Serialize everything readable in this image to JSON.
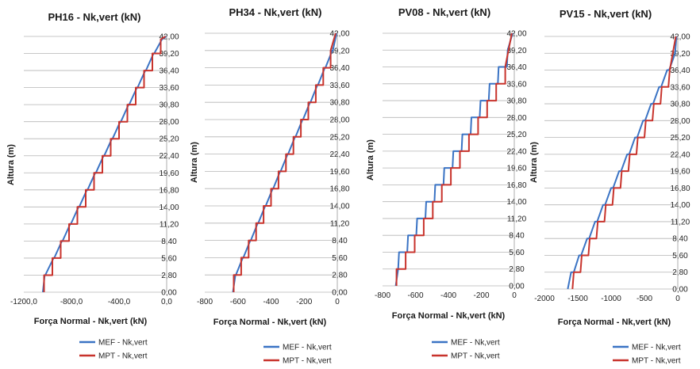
{
  "series_colors": {
    "MEF": "#3a73c4",
    "MPT": "#c8332c"
  },
  "chart_data": [
    {
      "type": "line",
      "title": "PH16 - Nk,vert (kN)",
      "xlabel": "Força Normal - Nk,vert (kN)",
      "ylabel": "Altura (m)",
      "xlim": [
        -1200,
        0
      ],
      "ylim": [
        0,
        42
      ],
      "xticks": [
        "-1200,0",
        "-800,0",
        "-400,0",
        "0,0"
      ],
      "yticks": [
        "0,00",
        "2,80",
        "5,60",
        "8,40",
        "11,20",
        "14,00",
        "16,80",
        "19,60",
        "22,40",
        "25,20",
        "28,00",
        "30,80",
        "33,60",
        "36,40",
        "39,20",
        "42,00"
      ],
      "legend": "bottom",
      "series": [
        {
          "name": "MEF - Nk,vert",
          "x": [
            -1040,
            -1025,
            -1020,
            -950,
            -945,
            -880,
            -875,
            -810,
            -805,
            -740,
            -735,
            -670,
            -665,
            -600,
            -595,
            -530,
            -525,
            -460,
            -455,
            -390,
            -385,
            -320,
            -315,
            -250,
            -245,
            -180,
            -175,
            -110,
            -105,
            -40,
            -5
          ],
          "y": [
            0,
            2.8,
            2.8,
            5.6,
            5.6,
            8.4,
            8.4,
            11.2,
            11.2,
            14,
            14,
            16.8,
            16.8,
            19.6,
            19.6,
            22.4,
            22.4,
            25.2,
            25.2,
            28,
            28,
            30.8,
            30.8,
            33.6,
            33.6,
            36.4,
            36.4,
            39.2,
            39.2,
            41.5,
            42
          ]
        },
        {
          "name": "MPT - Nk,vert",
          "x": [
            -1030,
            -1030,
            -960,
            -960,
            -890,
            -890,
            -820,
            -820,
            -750,
            -750,
            -680,
            -680,
            -610,
            -610,
            -540,
            -540,
            -470,
            -470,
            -400,
            -400,
            -330,
            -330,
            -260,
            -260,
            -190,
            -190,
            -120,
            -120,
            -50,
            -50,
            -10
          ],
          "y": [
            0,
            2.8,
            2.8,
            5.6,
            5.6,
            8.4,
            8.4,
            11.2,
            11.2,
            14,
            14,
            16.8,
            16.8,
            19.6,
            19.6,
            22.4,
            22.4,
            25.2,
            25.2,
            28,
            28,
            30.8,
            30.8,
            33.6,
            33.6,
            36.4,
            36.4,
            39.2,
            39.2,
            41.5,
            42
          ]
        }
      ]
    },
    {
      "type": "line",
      "title": "PH34 - Nk,vert (kN)",
      "xlabel": "Força Normal - Nk,vert (kN)",
      "ylabel": "Altura (m)",
      "xlim": [
        -800,
        0
      ],
      "ylim": [
        0,
        42
      ],
      "xticks": [
        "-800",
        "-600",
        "-400",
        "-200",
        "0"
      ],
      "yticks": [
        "0,00",
        "2,80",
        "5,60",
        "8,40",
        "11,20",
        "14,00",
        "16,80",
        "19,60",
        "22,40",
        "25,20",
        "28,00",
        "30,80",
        "33,60",
        "36,40",
        "39,20",
        "42,00"
      ],
      "legend": "bottom",
      "series": [
        {
          "name": "MEF - Nk,vert",
          "x": [
            -630,
            -615,
            -612,
            -570,
            -567,
            -525,
            -522,
            -480,
            -477,
            -435,
            -432,
            -390,
            -387,
            -345,
            -342,
            -300,
            -297,
            -255,
            -252,
            -210,
            -207,
            -165,
            -162,
            -120,
            -117,
            -75,
            -72,
            -30,
            -27,
            -5
          ],
          "y": [
            0,
            2.8,
            2.8,
            5.6,
            5.6,
            8.4,
            8.4,
            11.2,
            11.2,
            14,
            14,
            16.8,
            16.8,
            19.6,
            19.6,
            22.4,
            22.4,
            25.2,
            25.2,
            28,
            28,
            30.8,
            30.8,
            33.6,
            33.6,
            36.4,
            36.4,
            39.2,
            39.2,
            42
          ]
        },
        {
          "name": "MPT - Nk,vert",
          "x": [
            -625,
            -625,
            -580,
            -580,
            -535,
            -535,
            -490,
            -490,
            -445,
            -445,
            -400,
            -400,
            -355,
            -355,
            -310,
            -310,
            -265,
            -265,
            -220,
            -220,
            -175,
            -175,
            -130,
            -130,
            -85,
            -85,
            -40,
            -40,
            -10
          ],
          "y": [
            0,
            2.8,
            2.8,
            5.6,
            5.6,
            8.4,
            8.4,
            11.2,
            11.2,
            14,
            14,
            16.8,
            16.8,
            19.6,
            19.6,
            22.4,
            22.4,
            25.2,
            25.2,
            28,
            28,
            30.8,
            30.8,
            33.6,
            33.6,
            36.4,
            36.4,
            39.2,
            42
          ]
        }
      ]
    },
    {
      "type": "line",
      "title": "PV08 - Nk,vert (kN)",
      "xlabel": "Força Normal - Nk,vert (kN)",
      "ylabel": "Altura (m)",
      "xlim": [
        -800,
        0
      ],
      "ylim": [
        0,
        42
      ],
      "xticks": [
        "-800",
        "-600",
        "-400",
        "-200",
        "0"
      ],
      "yticks": [
        "0,00",
        "2,80",
        "5,60",
        "8,40",
        "11,20",
        "14,00",
        "16,80",
        "19,60",
        "22,40",
        "25,20",
        "28,00",
        "30,80",
        "33,60",
        "36,40",
        "39,20",
        "42,00"
      ],
      "legend": "bottom",
      "series": [
        {
          "name": "MEF - Nk,vert",
          "x": [
            -720,
            -705,
            -700,
            -650,
            -645,
            -595,
            -590,
            -540,
            -535,
            -485,
            -480,
            -430,
            -425,
            -375,
            -370,
            -320,
            -315,
            -265,
            -260,
            -210,
            -205,
            -155,
            -150,
            -100,
            -95,
            -45,
            -40,
            -10
          ],
          "y": [
            0,
            2.8,
            5.6,
            5.6,
            8.4,
            8.4,
            11.2,
            11.2,
            14,
            14,
            16.8,
            16.8,
            19.6,
            19.6,
            22.4,
            22.4,
            25.2,
            25.2,
            28,
            28,
            30.8,
            30.8,
            33.6,
            33.6,
            36.4,
            36.4,
            39.2,
            42
          ]
        },
        {
          "name": "MPT - Nk,vert",
          "x": [
            -715,
            -715,
            -660,
            -660,
            -605,
            -605,
            -550,
            -550,
            -495,
            -495,
            -440,
            -440,
            -385,
            -385,
            -330,
            -330,
            -275,
            -275,
            -220,
            -220,
            -165,
            -165,
            -110,
            -110,
            -55,
            -55,
            -15
          ],
          "y": [
            0,
            2.8,
            2.8,
            5.6,
            5.6,
            8.4,
            8.4,
            11.2,
            11.2,
            14,
            14,
            16.8,
            16.8,
            19.6,
            19.6,
            22.4,
            22.4,
            25.2,
            25.2,
            28,
            28,
            30.8,
            30.8,
            33.6,
            33.6,
            36.4,
            42
          ]
        }
      ]
    },
    {
      "type": "line",
      "title": "PV15 - Nk,vert (kN)",
      "xlabel": "Força Normal - Nk,vert (kN)",
      "ylabel": "Altura (m)",
      "xlim": [
        -2000,
        0
      ],
      "ylim": [
        0,
        42
      ],
      "xticks": [
        "-2000",
        "-1500",
        "-1000",
        "-500",
        "0"
      ],
      "yticks": [
        "0,00",
        "2,80",
        "5,60",
        "8,40",
        "11,20",
        "14,00",
        "16,80",
        "19,60",
        "22,40",
        "25,20",
        "28,00",
        "30,80",
        "33,60",
        "36,40",
        "39,20",
        "42,00"
      ],
      "legend": "bottom",
      "series": [
        {
          "name": "MEF - Nk,vert",
          "x": [
            -1650,
            -1600,
            -1560,
            -1480,
            -1450,
            -1360,
            -1330,
            -1240,
            -1210,
            -1120,
            -1090,
            -1000,
            -970,
            -880,
            -850,
            -760,
            -730,
            -640,
            -610,
            -520,
            -490,
            -400,
            -370,
            -280,
            -250,
            -160,
            -130,
            -40,
            -20
          ],
          "y": [
            0,
            2.8,
            2.8,
            5.6,
            5.6,
            8.4,
            8.4,
            11.2,
            11.2,
            14,
            14,
            16.8,
            16.8,
            19.6,
            19.6,
            22.4,
            22.4,
            25.2,
            25.2,
            28,
            28,
            30.8,
            30.8,
            33.6,
            33.6,
            36.4,
            36.4,
            39.2,
            42
          ]
        },
        {
          "name": "MPT - Nk,vert",
          "x": [
            -1580,
            -1560,
            -1460,
            -1440,
            -1340,
            -1320,
            -1220,
            -1200,
            -1100,
            -1080,
            -980,
            -960,
            -860,
            -840,
            -740,
            -720,
            -620,
            -600,
            -500,
            -480,
            -380,
            -360,
            -260,
            -240,
            -140,
            -120,
            -30
          ],
          "y": [
            0,
            2.8,
            2.8,
            5.6,
            5.6,
            8.4,
            8.4,
            11.2,
            11.2,
            14,
            14,
            16.8,
            16.8,
            19.6,
            19.6,
            22.4,
            22.4,
            25.2,
            25.2,
            28,
            28,
            30.8,
            30.8,
            33.6,
            33.6,
            36.4,
            42
          ]
        }
      ]
    }
  ]
}
